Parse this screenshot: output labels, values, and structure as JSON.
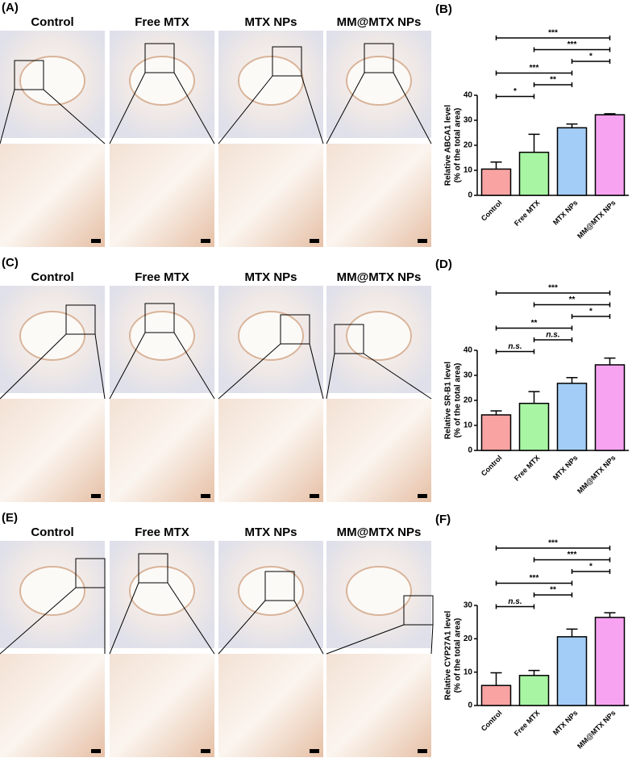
{
  "image_panels": [
    {
      "label": "(A)",
      "columns": [
        "Control",
        "Free MTX",
        "MTX NPs",
        "MM@MTX NPs"
      ]
    },
    {
      "label": "(C)",
      "columns": [
        "Control",
        "Free MTX",
        "MTX NPs",
        "MM@MTX NPs"
      ]
    },
    {
      "label": "(E)",
      "columns": [
        "Control",
        "Free MTX",
        "MTX NPs",
        "MM@MTX NPs"
      ]
    }
  ],
  "chart_data": [
    {
      "type": "bar",
      "panel_label": "(B)",
      "ylabel": [
        "Relative ABCA1 level",
        "(% of the total area)"
      ],
      "categories": [
        "Control",
        "Free MTX",
        "MTX NPs",
        "MM@MTX NPs"
      ],
      "values": [
        10.5,
        17.2,
        27,
        32.2
      ],
      "errors": [
        2.8,
        7.2,
        1.5,
        0.4
      ],
      "colors": [
        "#f9a3a3",
        "#a8f5a3",
        "#a3cdf7",
        "#f7a3f1"
      ],
      "ylim": [
        0,
        40
      ],
      "yticks": [
        0,
        10,
        20,
        30,
        40
      ],
      "significance": [
        {
          "text": "***",
          "between": [
            "Control",
            "MM@MTX NPs"
          ]
        },
        {
          "text": "***",
          "between": [
            "Free MTX",
            "MM@MTX NPs"
          ]
        },
        {
          "text": "*",
          "between": [
            "MTX NPs",
            "MM@MTX NPs"
          ]
        },
        {
          "text": "***",
          "between": [
            "Control",
            "MTX NPs"
          ]
        },
        {
          "text": "**",
          "between": [
            "Free MTX",
            "MTX NPs"
          ]
        },
        {
          "text": "*",
          "between": [
            "Control",
            "Free MTX"
          ]
        }
      ]
    },
    {
      "type": "bar",
      "panel_label": "(D)",
      "ylabel": [
        "Relative SR-B1 level",
        "(% of the total area)"
      ],
      "categories": [
        "Control",
        "Free MTX",
        "MTX NPs",
        "MM@MTX NPs"
      ],
      "values": [
        14.2,
        18.8,
        26.8,
        34.2
      ],
      "errors": [
        1.6,
        4.7,
        2.3,
        2.7
      ],
      "colors": [
        "#f9a3a3",
        "#a8f5a3",
        "#a3cdf7",
        "#f7a3f1"
      ],
      "ylim": [
        0,
        40
      ],
      "yticks": [
        0,
        10,
        20,
        30,
        40
      ],
      "significance": [
        {
          "text": "***",
          "between": [
            "Control",
            "MM@MTX NPs"
          ]
        },
        {
          "text": "**",
          "between": [
            "Free MTX",
            "MM@MTX NPs"
          ]
        },
        {
          "text": "*",
          "between": [
            "MTX NPs",
            "MM@MTX NPs"
          ]
        },
        {
          "text": "**",
          "between": [
            "Control",
            "MTX NPs"
          ]
        },
        {
          "text": "n.s.",
          "between": [
            "Free MTX",
            "MTX NPs"
          ]
        },
        {
          "text": "n.s.",
          "between": [
            "Control",
            "Free MTX"
          ]
        }
      ]
    },
    {
      "type": "bar",
      "panel_label": "(F)",
      "ylabel": [
        "Relative CYP27A1 level",
        "(% of the total area)"
      ],
      "categories": [
        "Control",
        "Free MTX",
        "MTX NPs",
        "MM@MTX NPs"
      ],
      "values": [
        6,
        9,
        20.6,
        26.4
      ],
      "errors": [
        3.8,
        1.5,
        2.3,
        1.4
      ],
      "colors": [
        "#f9a3a3",
        "#a8f5a3",
        "#a3cdf7",
        "#f7a3f1"
      ],
      "ylim": [
        0,
        30
      ],
      "yticks": [
        0,
        10,
        20,
        30
      ],
      "significance": [
        {
          "text": "***",
          "between": [
            "Control",
            "MM@MTX NPs"
          ]
        },
        {
          "text": "***",
          "between": [
            "Free MTX",
            "MM@MTX NPs"
          ]
        },
        {
          "text": "*",
          "between": [
            "MTX NPs",
            "MM@MTX NPs"
          ]
        },
        {
          "text": "***",
          "between": [
            "Control",
            "MTX NPs"
          ]
        },
        {
          "text": "**",
          "between": [
            "Free MTX",
            "MTX NPs"
          ]
        },
        {
          "text": "n.s.",
          "between": [
            "Control",
            "Free MTX"
          ]
        }
      ]
    }
  ]
}
